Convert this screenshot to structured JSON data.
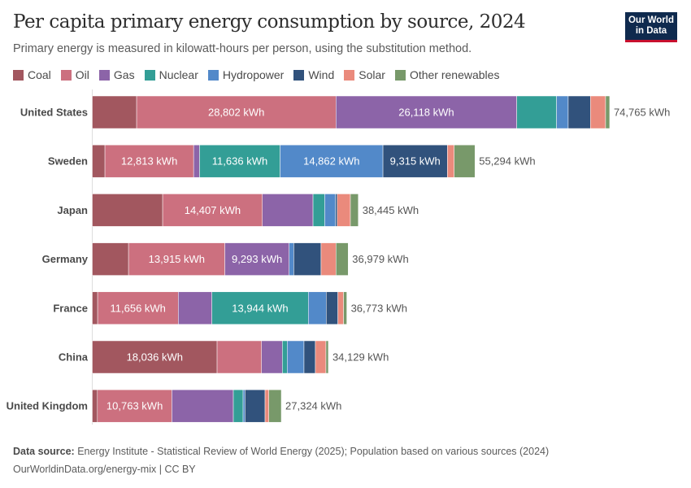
{
  "header": {
    "title": "Per capita primary energy consumption by source, 2024",
    "subtitle": "Primary energy is measured in kilowatt-hours per person, using the substitution method.",
    "logo_text": "Our World in Data"
  },
  "chart_data": {
    "type": "bar",
    "orientation": "horizontal",
    "stacked": true,
    "title": "Per capita primary energy consumption by source, 2024",
    "unit": "kWh",
    "legend_position": "top",
    "grid": false,
    "categories": [
      "United States",
      "Sweden",
      "Japan",
      "Germany",
      "France",
      "China",
      "United Kingdom"
    ],
    "series": [
      {
        "name": "Coal",
        "color": "#a2575f",
        "values": [
          6410,
          1830,
          10170,
          5240,
          775,
          18036,
          740
        ]
      },
      {
        "name": "Oil",
        "color": "#cc707f",
        "values": [
          28802,
          12813,
          14407,
          13915,
          11656,
          6420,
          10763
        ]
      },
      {
        "name": "Gas",
        "color": "#8c64a8",
        "values": [
          26118,
          860,
          7320,
          9293,
          4850,
          3010,
          8880
        ]
      },
      {
        "name": "Nuclear",
        "color": "#339e96",
        "values": [
          5750,
          11636,
          1690,
          0,
          13944,
          700,
          1410
        ]
      },
      {
        "name": "Hydropower",
        "color": "#5289c9",
        "values": [
          1690,
          14862,
          1560,
          670,
          2580,
          2430,
          280
        ]
      },
      {
        "name": "Wind",
        "color": "#31527c",
        "values": [
          3210,
          9315,
          240,
          3940,
          1680,
          1640,
          2890
        ]
      },
      {
        "name": "Solar",
        "color": "#ea8a7c",
        "values": [
          2190,
          975,
          1910,
          2150,
          820,
          1530,
          550
        ]
      },
      {
        "name": "Other renewables",
        "color": "#78996a",
        "values": [
          590,
          3003,
          1140,
          1770,
          470,
          350,
          1800
        ]
      }
    ],
    "totals": [
      "74,765 kWh",
      "55,294 kWh",
      "38,445 kWh",
      "36,979 kWh",
      "36,773 kWh",
      "34,129 kWh",
      "27,324 kWh"
    ],
    "segment_labels": [
      {
        "Oil": "28,802 kWh",
        "Gas": "26,118 kWh"
      },
      {
        "Oil": "12,813 kWh",
        "Nuclear": "11,636 kWh",
        "Hydropower": "14,862 kWh",
        "Wind": "9,315 kWh"
      },
      {
        "Oil": "14,407 kWh"
      },
      {
        "Oil": "13,915 kWh",
        "Gas": "9,293 kWh"
      },
      {
        "Oil": "11,656 kWh",
        "Nuclear": "13,944 kWh"
      },
      {
        "Coal": "18,036 kWh"
      },
      {
        "Oil": "10,763 kWh"
      }
    ]
  },
  "footer": {
    "source_label": "Data source:",
    "source_text": "Energy Institute - Statistical Review of World Energy (2025); Population based on various sources (2024)",
    "link": "OurWorldinData.org/energy-mix",
    "license": "CC BY"
  }
}
